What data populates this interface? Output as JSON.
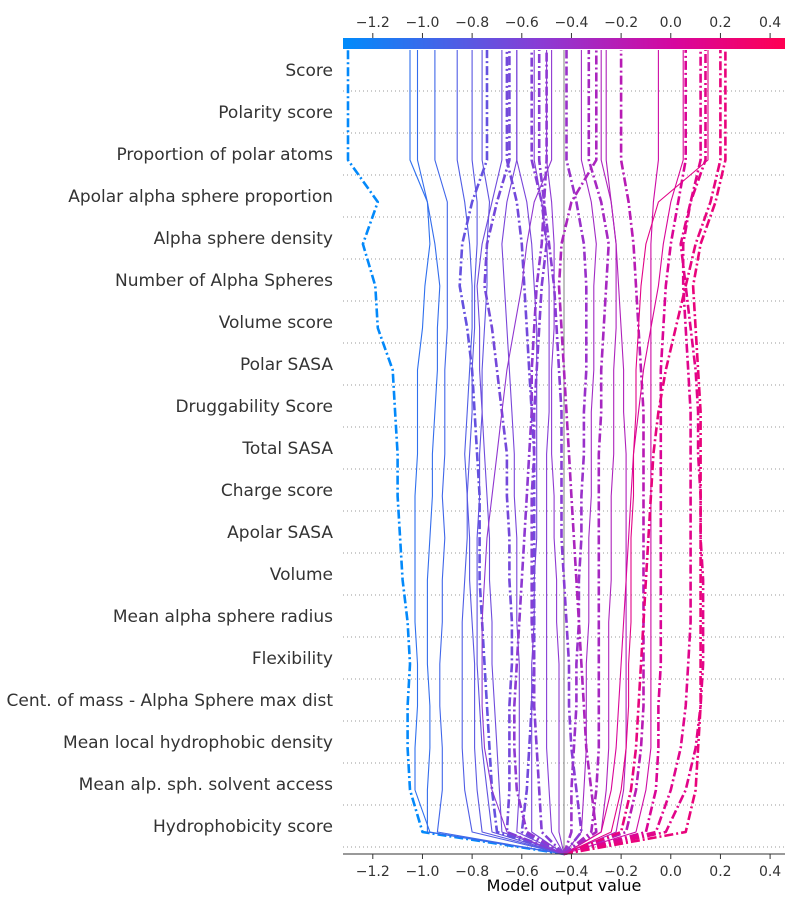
{
  "chart_data": {
    "type": "line",
    "chart_kind": "shap-decision-plot",
    "xlabel": "Model output value",
    "xlim": [
      -1.32,
      0.46
    ],
    "base_value": -0.43,
    "xticks": [
      -1.2,
      -1.0,
      -0.8,
      -0.6,
      -0.4,
      -0.2,
      0.0,
      0.2,
      0.4
    ],
    "xtick_labels": [
      "−1.2",
      "−1.0",
      "−0.8",
      "−0.6",
      "−0.4",
      "−0.2",
      "0.0",
      "0.2",
      "0.4"
    ],
    "colorbar": {
      "low_color": "#008bfb",
      "high_color": "#ff0052"
    },
    "features_top_to_bottom": [
      "Score",
      "Polarity score",
      "Proportion of polar atoms",
      "Apolar alpha sphere proportion",
      "Alpha sphere density",
      "Number of Alpha Spheres",
      "Volume score",
      "Polar SASA",
      "Druggability Score",
      "Total SASA",
      "Charge score",
      "Apolar SASA",
      "Volume",
      "Mean alpha sphere radius",
      "Flexibility",
      "Cent. of mass - Alpha Sphere max dist",
      "Mean local hydrophobic density",
      "Mean alp. sph. solvent access",
      "Hydrophobicity score"
    ],
    "series_note": "x values listed from the bottom feature up to the top output",
    "series": [
      {
        "style": "dashdot",
        "x": [
          -0.43,
          -1.0,
          -1.05,
          -1.06,
          -1.06,
          -1.05,
          -1.06,
          -1.08,
          -1.09,
          -1.1,
          -1.1,
          -1.11,
          -1.12,
          -1.18,
          -1.19,
          -1.24,
          -1.18,
          -1.3
        ]
      },
      {
        "style": "solid",
        "x": [
          -0.43,
          -0.97,
          -1.03,
          -1.03,
          -1.02,
          -1.02,
          -1.03,
          -1.03,
          -1.03,
          -1.03,
          -1.02,
          -1.02,
          -1.02,
          -1.0,
          -0.99,
          -0.97,
          -0.98,
          -1.05
        ]
      },
      {
        "style": "solid",
        "x": [
          -0.43,
          -0.98,
          -0.98,
          -0.97,
          -0.97,
          -0.98,
          -0.98,
          -0.98,
          -0.97,
          -0.96,
          -0.96,
          -0.95,
          -0.94,
          -0.94,
          -0.93,
          -0.95,
          -0.98,
          -1.02
        ]
      },
      {
        "style": "solid",
        "x": [
          -0.43,
          -0.94,
          -0.92,
          -0.92,
          -0.93,
          -0.93,
          -0.92,
          -0.92,
          -0.91,
          -0.92,
          -0.91,
          -0.91,
          -0.91,
          -0.9,
          -0.9,
          -0.9,
          -0.9,
          -0.95
        ]
      },
      {
        "style": "solid",
        "x": [
          -0.43,
          -0.8,
          -0.83,
          -0.84,
          -0.84,
          -0.84,
          -0.84,
          -0.83,
          -0.82,
          -0.82,
          -0.83,
          -0.82,
          -0.81,
          -0.8,
          -0.8,
          -0.81,
          -0.83,
          -0.86
        ]
      },
      {
        "style": "solid",
        "x": [
          -0.43,
          -0.76,
          -0.78,
          -0.79,
          -0.79,
          -0.79,
          -0.8,
          -0.81,
          -0.81,
          -0.82,
          -0.81,
          -0.8,
          -0.8,
          -0.79,
          -0.79,
          -0.78,
          -0.78,
          -0.8
        ]
      },
      {
        "style": "solid",
        "x": [
          -0.43,
          -0.72,
          -0.74,
          -0.76,
          -0.77,
          -0.78,
          -0.78,
          -0.78,
          -0.78,
          -0.77,
          -0.77,
          -0.76,
          -0.76,
          -0.75,
          -0.74,
          -0.74,
          -0.73,
          -0.76
        ]
      },
      {
        "style": "dashdot",
        "x": [
          -0.43,
          -0.7,
          -0.72,
          -0.73,
          -0.74,
          -0.75,
          -0.76,
          -0.77,
          -0.77,
          -0.77,
          -0.78,
          -0.79,
          -0.8,
          -0.82,
          -0.85,
          -0.84,
          -0.8,
          -0.74
        ]
      },
      {
        "style": "solid",
        "x": [
          -0.43,
          -0.68,
          -0.69,
          -0.7,
          -0.71,
          -0.72,
          -0.72,
          -0.73,
          -0.73,
          -0.74,
          -0.75,
          -0.76,
          -0.77,
          -0.77,
          -0.78,
          -0.76,
          -0.72,
          -0.68
        ]
      },
      {
        "style": "dashdot",
        "x": [
          -0.43,
          -0.66,
          -0.65,
          -0.65,
          -0.65,
          -0.64,
          -0.64,
          -0.65,
          -0.65,
          -0.66,
          -0.66,
          -0.68,
          -0.7,
          -0.72,
          -0.75,
          -0.74,
          -0.7,
          -0.65
        ]
      },
      {
        "style": "solid",
        "x": [
          -0.43,
          -0.62,
          -0.61,
          -0.61,
          -0.61,
          -0.61,
          -0.62,
          -0.62,
          -0.62,
          -0.63,
          -0.63,
          -0.64,
          -0.65,
          -0.66,
          -0.67,
          -0.68,
          -0.66,
          -0.62
        ]
      },
      {
        "style": "dashdot",
        "x": [
          -0.43,
          -0.6,
          -0.58,
          -0.57,
          -0.56,
          -0.55,
          -0.55,
          -0.55,
          -0.55,
          -0.55,
          -0.55,
          -0.56,
          -0.57,
          -0.58,
          -0.59,
          -0.6,
          -0.62,
          -0.66
        ]
      },
      {
        "style": "solid",
        "x": [
          -0.43,
          -0.56,
          -0.56,
          -0.56,
          -0.56,
          -0.56,
          -0.55,
          -0.55,
          -0.54,
          -0.54,
          -0.54,
          -0.54,
          -0.54,
          -0.54,
          -0.55,
          -0.56,
          -0.58,
          -0.62
        ]
      },
      {
        "style": "dashdot",
        "x": [
          -0.43,
          -0.52,
          -0.53,
          -0.54,
          -0.55,
          -0.55,
          -0.56,
          -0.56,
          -0.56,
          -0.56,
          -0.55,
          -0.55,
          -0.54,
          -0.53,
          -0.52,
          -0.5,
          -0.52,
          -0.56
        ]
      },
      {
        "style": "dashdot",
        "x": [
          -0.43,
          -0.58,
          -0.62,
          -0.63,
          -0.63,
          -0.62,
          -0.61,
          -0.6,
          -0.59,
          -0.58,
          -0.57,
          -0.56,
          -0.56,
          -0.55,
          -0.54,
          -0.52,
          -0.51,
          -0.5
        ]
      },
      {
        "style": "solid",
        "x": [
          -0.43,
          -0.48,
          -0.49,
          -0.5,
          -0.5,
          -0.5,
          -0.5,
          -0.5,
          -0.5,
          -0.5,
          -0.5,
          -0.49,
          -0.49,
          -0.49,
          -0.49,
          -0.5,
          -0.52,
          -0.55
        ]
      },
      {
        "style": "solid",
        "x": [
          -0.43,
          -0.45,
          -0.45,
          -0.45,
          -0.45,
          -0.45,
          -0.46,
          -0.46,
          -0.47,
          -0.47,
          -0.48,
          -0.48,
          -0.48,
          -0.47,
          -0.47,
          -0.47,
          -0.48,
          -0.5
        ]
      },
      {
        "style": "dashdot",
        "x": [
          -0.43,
          -0.4,
          -0.4,
          -0.39,
          -0.38,
          -0.38,
          -0.37,
          -0.37,
          -0.36,
          -0.36,
          -0.35,
          -0.35,
          -0.34,
          -0.34,
          -0.34,
          -0.35,
          -0.38,
          -0.42
        ]
      },
      {
        "style": "solid",
        "x": [
          -0.43,
          -0.36,
          -0.35,
          -0.34,
          -0.34,
          -0.34,
          -0.33,
          -0.33,
          -0.33,
          -0.32,
          -0.32,
          -0.32,
          -0.31,
          -0.31,
          -0.31,
          -0.3,
          -0.32,
          -0.36
        ]
      },
      {
        "style": "dashdot",
        "x": [
          -0.43,
          -0.32,
          -0.3,
          -0.29,
          -0.29,
          -0.29,
          -0.29,
          -0.29,
          -0.29,
          -0.29,
          -0.29,
          -0.28,
          -0.28,
          -0.27,
          -0.26,
          -0.25,
          -0.28,
          -0.33
        ]
      },
      {
        "style": "solid",
        "x": [
          -0.43,
          -0.28,
          -0.26,
          -0.25,
          -0.25,
          -0.25,
          -0.25,
          -0.24,
          -0.24,
          -0.24,
          -0.23,
          -0.23,
          -0.23,
          -0.22,
          -0.22,
          -0.22,
          -0.24,
          -0.28
        ]
      },
      {
        "style": "dashdot",
        "x": [
          -0.43,
          -0.36,
          -0.38,
          -0.4,
          -0.41,
          -0.41,
          -0.42,
          -0.43,
          -0.44,
          -0.44,
          -0.44,
          -0.44,
          -0.45,
          -0.46,
          -0.47,
          -0.49,
          -0.51,
          -0.53
        ]
      },
      {
        "style": "solid",
        "x": [
          -0.43,
          -0.22,
          -0.19,
          -0.18,
          -0.18,
          -0.18,
          -0.18,
          -0.18,
          -0.18,
          -0.18,
          -0.18,
          -0.19,
          -0.19,
          -0.2,
          -0.21,
          -0.22,
          -0.24,
          -0.26
        ]
      },
      {
        "style": "dashdot",
        "x": [
          -0.43,
          -0.18,
          -0.14,
          -0.12,
          -0.11,
          -0.11,
          -0.11,
          -0.11,
          -0.11,
          -0.11,
          -0.11,
          -0.11,
          -0.12,
          -0.13,
          -0.14,
          -0.15,
          -0.17,
          -0.2
        ]
      },
      {
        "style": "solid",
        "x": [
          -0.43,
          -0.14,
          -0.1,
          -0.08,
          -0.08,
          -0.08,
          -0.08,
          -0.08,
          -0.08,
          -0.08,
          -0.08,
          -0.08,
          -0.08,
          -0.08,
          -0.08,
          -0.08,
          -0.07,
          -0.05
        ]
      },
      {
        "style": "dashdot",
        "x": [
          -0.43,
          -0.1,
          -0.06,
          -0.05,
          -0.05,
          -0.04,
          -0.04,
          -0.04,
          -0.04,
          -0.04,
          -0.04,
          -0.04,
          -0.04,
          -0.03,
          -0.02,
          0.0,
          0.03,
          0.06
        ]
      },
      {
        "style": "dashdot",
        "x": [
          -0.43,
          -0.06,
          0.0,
          0.04,
          0.06,
          0.07,
          0.08,
          0.08,
          0.08,
          0.08,
          0.08,
          0.08,
          0.07,
          0.06,
          0.05,
          0.05,
          0.08,
          0.12
        ]
      },
      {
        "style": "dashdot",
        "x": [
          -0.43,
          -0.02,
          0.06,
          0.1,
          0.12,
          0.13,
          0.13,
          0.13,
          0.12,
          0.12,
          0.11,
          0.11,
          0.1,
          0.08,
          0.06,
          0.04,
          0.08,
          0.14
        ]
      },
      {
        "style": "solid",
        "x": [
          -0.43,
          -0.28,
          -0.24,
          -0.22,
          -0.21,
          -0.2,
          -0.19,
          -0.18,
          -0.17,
          -0.16,
          -0.15,
          -0.13,
          -0.11,
          -0.08,
          -0.05,
          -0.03,
          0.0,
          0.05
        ]
      },
      {
        "style": "dashdot",
        "x": [
          -0.43,
          0.06,
          0.1,
          0.11,
          0.12,
          0.12,
          0.12,
          0.12,
          0.12,
          0.12,
          0.12,
          0.12,
          0.11,
          0.1,
          0.09,
          0.12,
          0.18,
          0.22
        ]
      },
      {
        "style": "solid",
        "x": [
          -0.43,
          -0.24,
          -0.2,
          -0.18,
          -0.17,
          -0.17,
          -0.16,
          -0.16,
          -0.16,
          -0.15,
          -0.15,
          -0.14,
          -0.14,
          -0.13,
          -0.12,
          -0.1,
          -0.05,
          0.15
        ]
      },
      {
        "style": "dashdot",
        "x": [
          -0.43,
          -0.2,
          -0.16,
          -0.14,
          -0.13,
          -0.12,
          -0.11,
          -0.1,
          -0.09,
          -0.08,
          -0.07,
          -0.05,
          -0.02,
          0.02,
          0.06,
          0.1,
          0.16,
          0.2
        ]
      },
      {
        "style": "solid",
        "x": [
          -0.43,
          -0.66,
          -0.72,
          -0.75,
          -0.76,
          -0.76,
          -0.76,
          -0.75,
          -0.74,
          -0.72,
          -0.7,
          -0.68,
          -0.66,
          -0.63,
          -0.6,
          -0.58,
          -0.55,
          -0.48
        ]
      },
      {
        "style": "dashdot",
        "x": [
          -0.43,
          -0.3,
          -0.32,
          -0.34,
          -0.35,
          -0.36,
          -0.37,
          -0.38,
          -0.39,
          -0.4,
          -0.41,
          -0.42,
          -0.43,
          -0.44,
          -0.45,
          -0.44,
          -0.4,
          -0.3
        ]
      }
    ]
  }
}
